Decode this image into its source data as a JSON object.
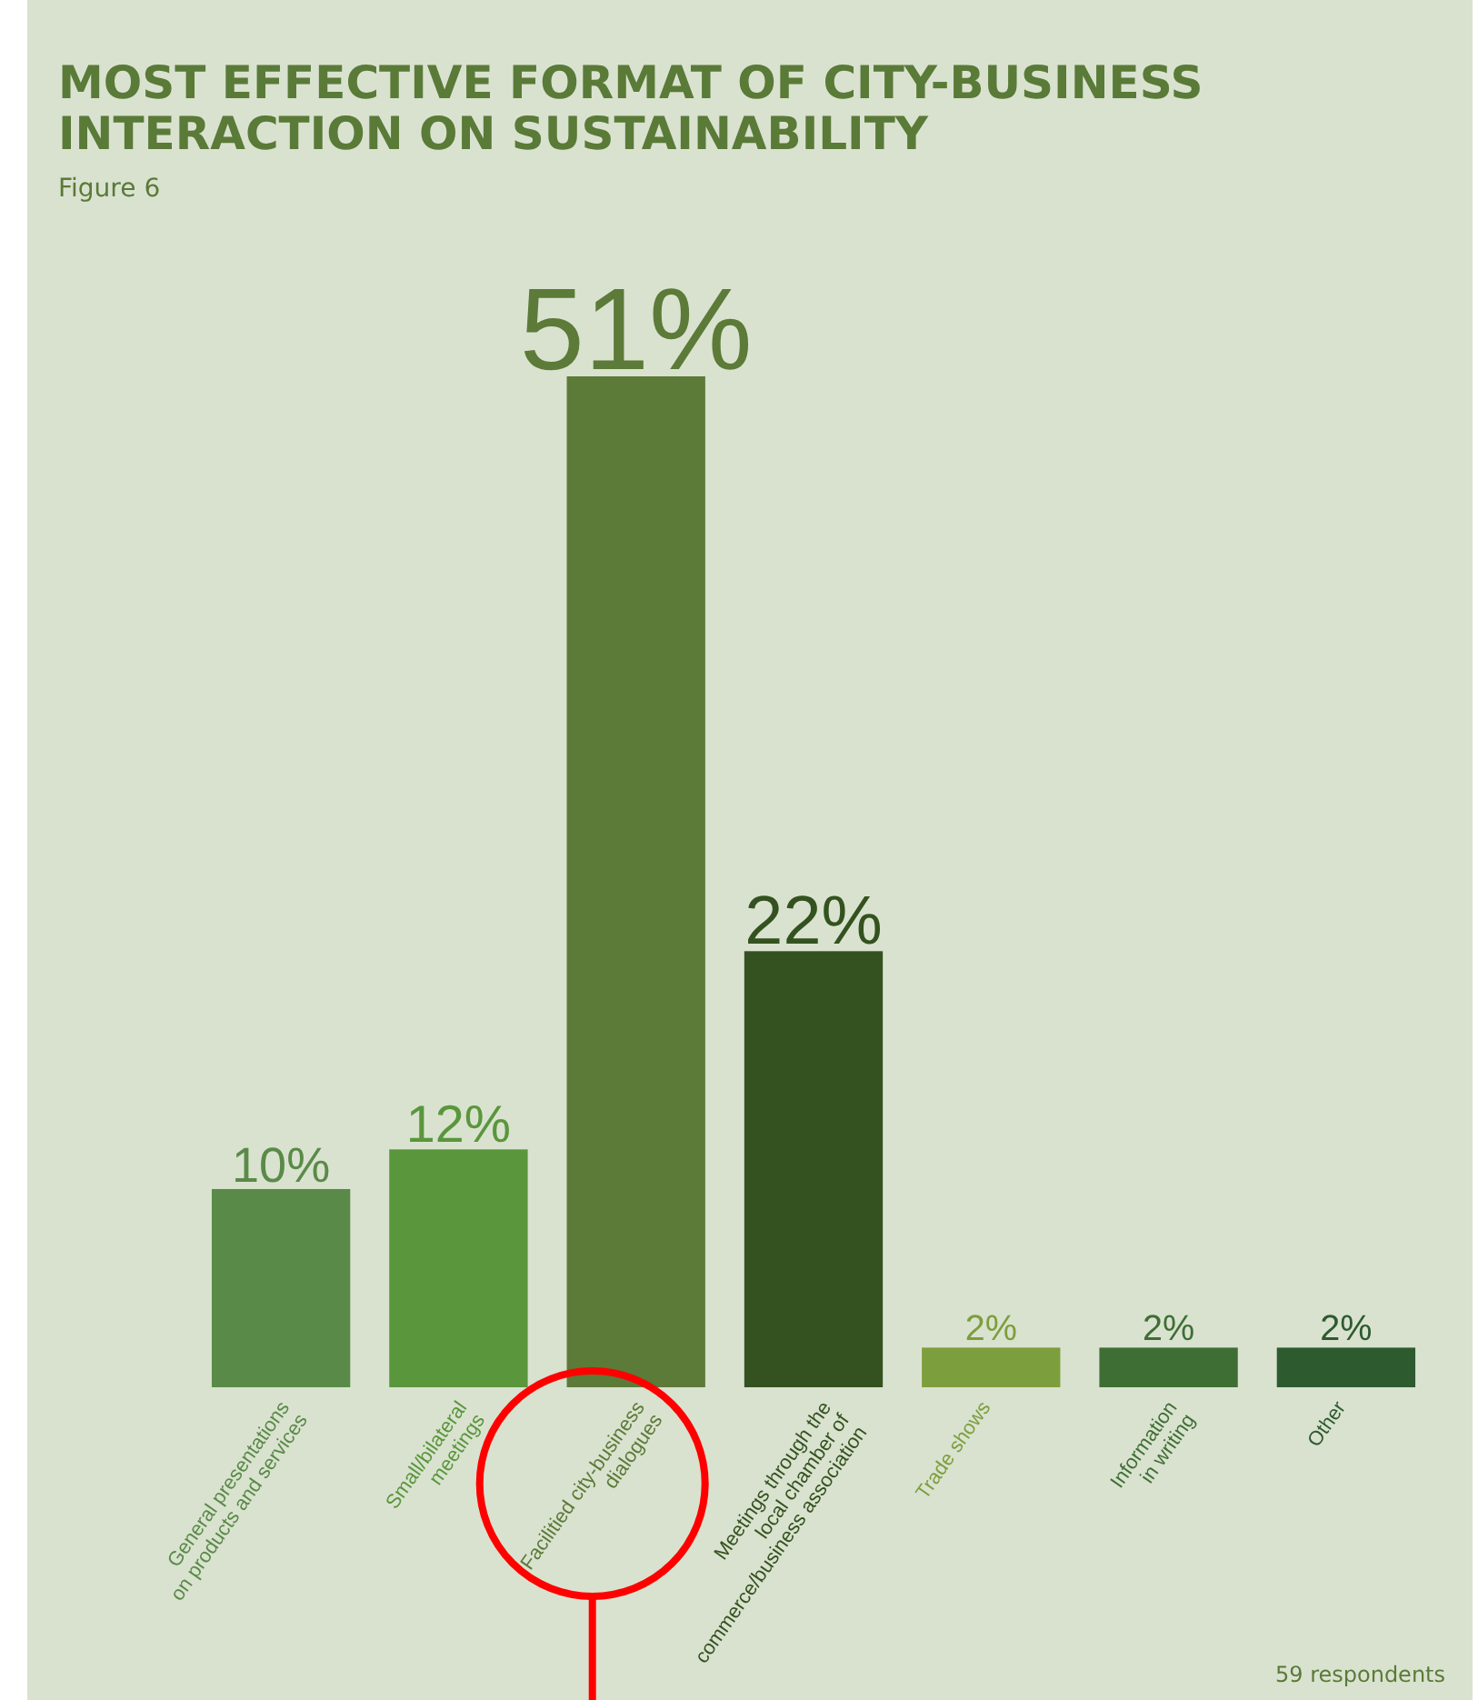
{
  "chart_data": {
    "type": "bar",
    "title": "MOST EFFECTIVE FORMAT OF CITY-BUSINESS INTERACTION ON SUSTAINABILITY",
    "subtitle": "Figure 6",
    "categories": [
      "General presentations\non products and services",
      "Small/bilateral\nmeetings",
      "Facilitied city-business\ndialogues",
      "Meetings through the\nlocal chamber of\ncommerce/business association",
      "Trade shows",
      "Information\nin writing",
      "Other"
    ],
    "values": [
      10,
      12,
      51,
      22,
      2,
      2,
      2
    ],
    "colors": [
      "#5a8a48",
      "#5a963c",
      "#5c7a38",
      "#34521f",
      "#7d9e3c",
      "#3f6e35",
      "#2e5a30"
    ],
    "relative": false,
    "data_labels": true,
    "value_labels": [
      "10%",
      "12%",
      "51%",
      "22%",
      "2%",
      "2%",
      "2%"
    ],
    "annotations": [
      "59 respondents"
    ]
  }
}
